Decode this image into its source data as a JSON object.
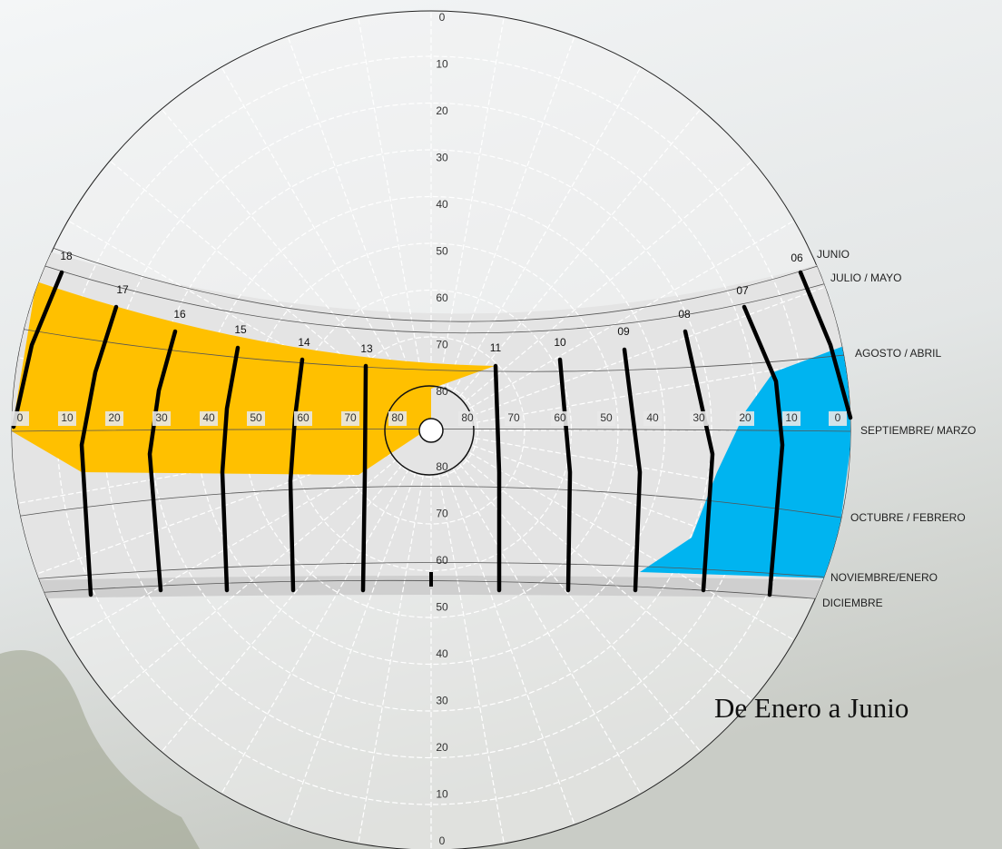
{
  "caption": "De Enero a Junio",
  "hours": [
    "18",
    "17",
    "16",
    "15",
    "14",
    "13",
    "11",
    "10",
    "09",
    "08",
    "07",
    "06"
  ],
  "months": [
    "JUNIO",
    "JULIO / MAYO",
    "AGOSTO / ABRIL",
    "SEPTIEMBRE/ MARZO",
    "OCTUBRE / FEBRERO",
    "NOVIEMBRE/ENERO",
    "DICIEMBRE"
  ],
  "altitude_top": [
    0,
    10,
    20,
    30,
    40,
    50,
    60,
    70,
    80
  ],
  "altitude_bottom": [
    80,
    70,
    60,
    50,
    40,
    30,
    20,
    10,
    0
  ],
  "altitude_left": [
    0,
    10,
    20,
    30,
    40,
    50,
    60,
    70,
    80
  ],
  "altitude_right": [
    80,
    70,
    60,
    50,
    40,
    30,
    20,
    10,
    0
  ]
}
